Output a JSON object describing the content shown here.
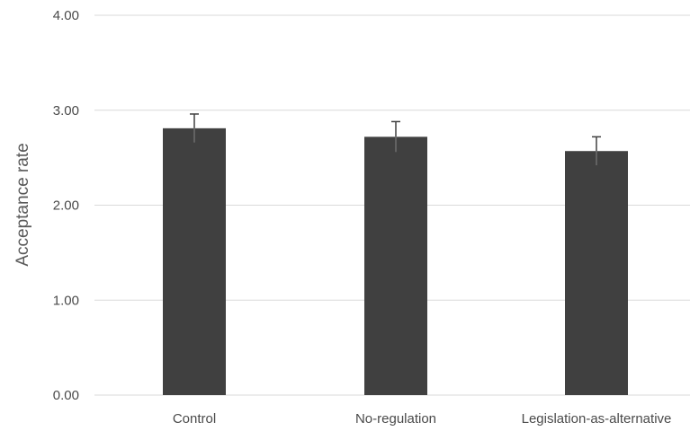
{
  "chart_data": {
    "type": "bar",
    "categories": [
      "Control",
      "No-regulation",
      "Legislation-as-alternative"
    ],
    "values": [
      2.81,
      2.72,
      2.57
    ],
    "error_upper": [
      2.96,
      2.88,
      2.72
    ],
    "error_lower": [
      2.66,
      2.56,
      2.42
    ],
    "ylabel": "Acceptance rate",
    "ylim": [
      0,
      4
    ],
    "yticks": [
      "0.00",
      "1.00",
      "2.00",
      "3.00",
      "4.00"
    ],
    "grid": true,
    "bar_color": "#404040",
    "error_bar_color": "#404040",
    "grid_color": "#d9d9d9"
  }
}
